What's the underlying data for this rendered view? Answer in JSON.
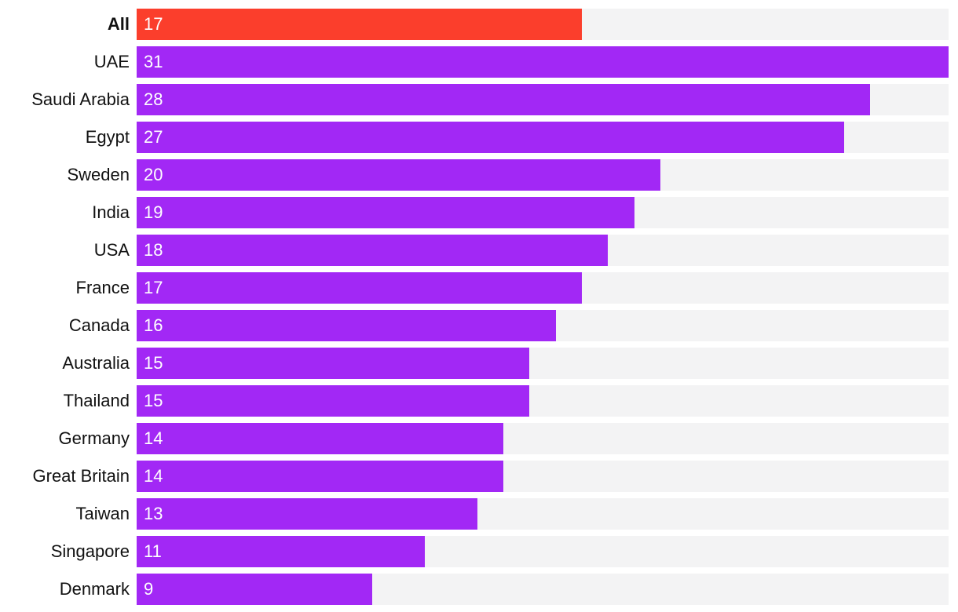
{
  "chart_data": {
    "type": "bar",
    "orientation": "horizontal",
    "title": "",
    "xlabel": "",
    "ylabel": "",
    "xlim": [
      0,
      31
    ],
    "grid": false,
    "legend": false,
    "categories": [
      "All",
      "UAE",
      "Saudi Arabia",
      "Egypt",
      "Sweden",
      "India",
      "USA",
      "France",
      "Canada",
      "Australia",
      "Thailand",
      "Germany",
      "Great Britain",
      "Taiwan",
      "Singapore",
      "Denmark"
    ],
    "values": [
      17,
      31,
      28,
      27,
      20,
      19,
      18,
      17,
      16,
      15,
      15,
      14,
      14,
      13,
      11,
      9
    ],
    "value_labels": [
      "17",
      "31",
      "28",
      "27",
      "20",
      "19",
      "18",
      "17",
      "16",
      "15",
      "15",
      "14",
      "14",
      "13",
      "11",
      "9"
    ],
    "highlight_index": 0,
    "colors": {
      "highlight_bar": "#FB3E2C",
      "bar": "#A228F5",
      "track": "#F3F3F4",
      "category_text": "#111111",
      "value_text": "#FFFFFF",
      "background": "#FFFFFF"
    }
  }
}
